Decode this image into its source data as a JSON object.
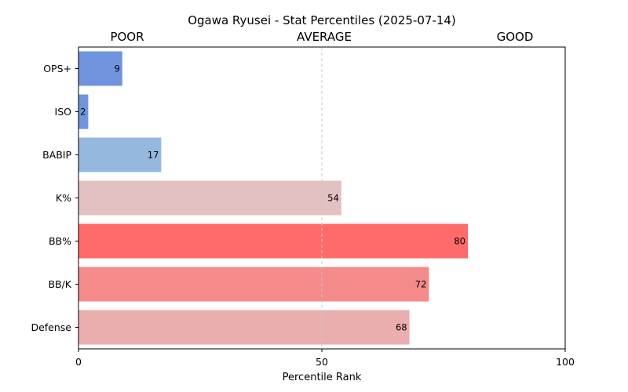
{
  "chart_data": {
    "type": "bar",
    "orientation": "horizontal",
    "title": "Ogawa Ryusei - Stat Percentiles (2025-07-14)",
    "xlabel": "Percentile Rank",
    "ylabel": "",
    "xlim": [
      0,
      100
    ],
    "xticks": [
      "0",
      "50",
      "100"
    ],
    "zones": [
      "POOR",
      "AVERAGE",
      "GOOD"
    ],
    "reference_line": 50,
    "grid": false,
    "categories": [
      "OPS+",
      "ISO",
      "BABIP",
      "K%",
      "BB%",
      "BB/K",
      "Defense"
    ],
    "values": [
      9,
      2,
      17,
      54,
      80,
      72,
      68
    ],
    "colors": [
      "#7094de",
      "#7094de",
      "#95b8de",
      "#e3c1c1",
      "#ff6b6b",
      "#f48a8a",
      "#ebaeae"
    ]
  }
}
